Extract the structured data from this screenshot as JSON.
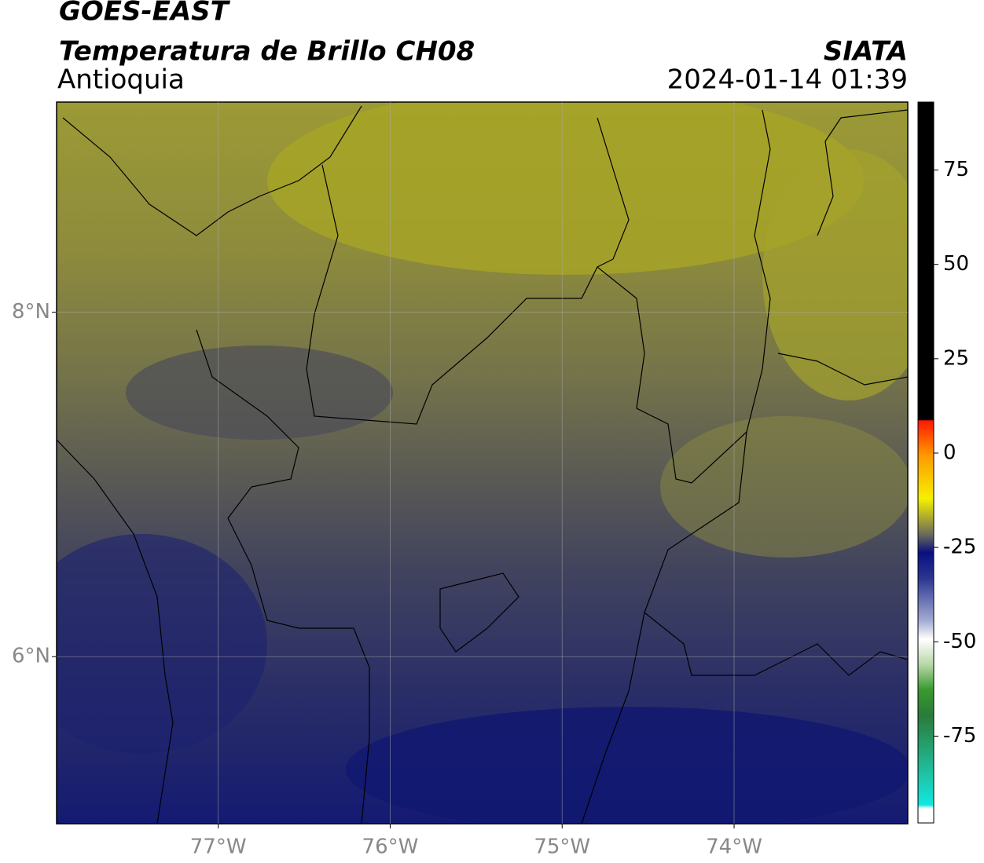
{
  "map": {
    "title": "GOES-EAST",
    "subtitle": "Temperatura de Brillo CH08",
    "region": "Antioquia",
    "source": "SIATA",
    "timestamp": "2024-01-14 01:39",
    "xlim": [
      -77.94,
      -72.99
    ],
    "ylim": [
      5.03,
      9.22
    ],
    "xticks": [
      {
        "value": -77,
        "label": "77°W"
      },
      {
        "value": -76,
        "label": "76°W"
      },
      {
        "value": -75,
        "label": "75°W"
      },
      {
        "value": -74,
        "label": "74°W"
      }
    ],
    "yticks": [
      {
        "value": 8,
        "label": "8°N"
      },
      {
        "value": 6,
        "label": "6°N"
      }
    ],
    "grid": true,
    "colorbar": {
      "lim": [
        -98,
        93
      ],
      "ticks": [
        75,
        50,
        25,
        0,
        -25,
        -50,
        -75
      ]
    }
  }
}
